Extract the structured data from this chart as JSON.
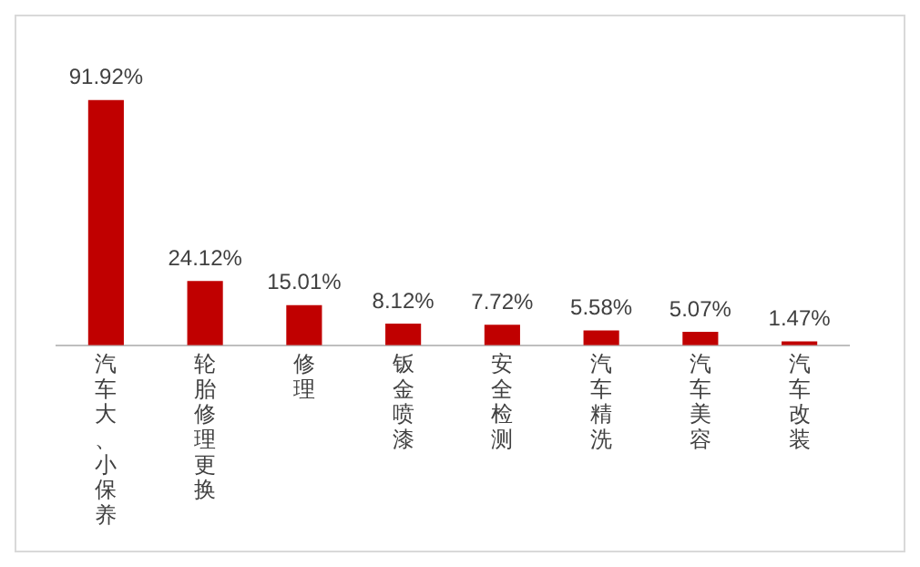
{
  "chart_data": {
    "type": "bar",
    "categories": [
      "汽车大、小保养",
      "轮胎修理更换",
      "修理",
      "钣金喷漆",
      "安全检测",
      "汽车精洗",
      "汽车美容",
      "汽车改装"
    ],
    "values": [
      91.92,
      24.12,
      15.01,
      8.12,
      7.72,
      5.58,
      5.07,
      1.47
    ],
    "value_labels": [
      "91.92%",
      "24.12%",
      "15.01%",
      "8.12%",
      "7.72%",
      "5.58%",
      "5.07%",
      "1.47%"
    ],
    "color": "#c00000",
    "grid": false,
    "legend": false
  }
}
